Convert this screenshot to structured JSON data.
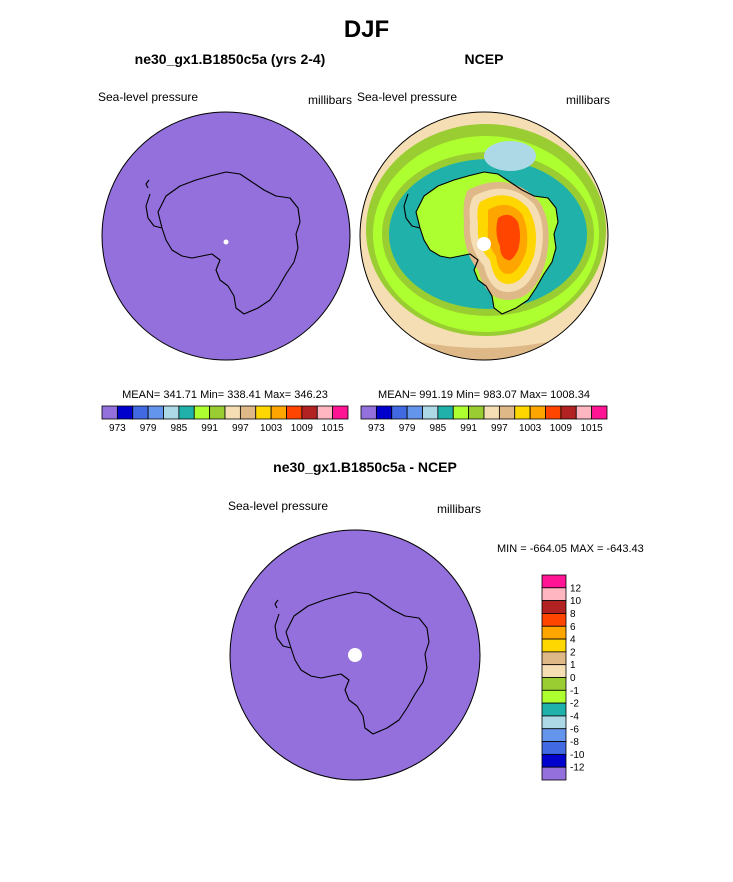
{
  "page": {
    "title": "DJF"
  },
  "chart_data": [
    {
      "type": "heatmap",
      "title": "ne30_gx1.B1850c5a (yrs 2-4)",
      "left_label": "Sea-level pressure",
      "right_label": "millibars",
      "stats": "MEAN= 341.71  Min= 338.41  Max= 346.23",
      "colorbar_ticks": [
        "973",
        "979",
        "985",
        "991",
        "997",
        "1003",
        "1009",
        "1015"
      ],
      "field_color": "#9370db",
      "projection": "south-polar stereographic"
    },
    {
      "type": "heatmap",
      "title": "NCEP",
      "left_label": "Sea-level pressure",
      "right_label": "millibars",
      "stats": "MEAN= 991.19  Min= 983.07  Max= 1008.34",
      "colorbar_ticks": [
        "973",
        "979",
        "985",
        "991",
        "997",
        "1003",
        "1009",
        "1015"
      ],
      "projection": "south-polar stereographic"
    },
    {
      "type": "heatmap",
      "title": "ne30_gx1.B1850c5a - NCEP",
      "left_label": "Sea-level pressure",
      "right_label": "millibars",
      "minmax": "MIN = -664.05 MAX = -643.43",
      "colorbar_ticks": [
        "12",
        "10",
        "8",
        "6",
        "4",
        "2",
        "1",
        "0",
        "-1",
        "-2",
        "-4",
        "-6",
        "-8",
        "-10",
        "-12"
      ],
      "field_color": "#9370db",
      "projection": "south-polar stereographic"
    }
  ],
  "colors": {
    "level_palette": [
      "#9370db",
      "#0000cd",
      "#4169e1",
      "#6495ed",
      "#add8e6",
      "#20b2aa",
      "#adff2f",
      "#9acd32",
      "#f5deb3",
      "#deb887",
      "#ffd700",
      "#ffa500",
      "#ff4500",
      "#b22222",
      "#ffb6c1",
      "#ff1493"
    ],
    "diff_palette": [
      "#ff1493",
      "#ffb6c1",
      "#b22222",
      "#ff4500",
      "#ffa500",
      "#ffd700",
      "#deb887",
      "#f5deb3",
      "#9acd32",
      "#adff2f",
      "#20b2aa",
      "#add8e6",
      "#6495ed",
      "#4169e1",
      "#0000cd",
      "#9370db"
    ]
  }
}
